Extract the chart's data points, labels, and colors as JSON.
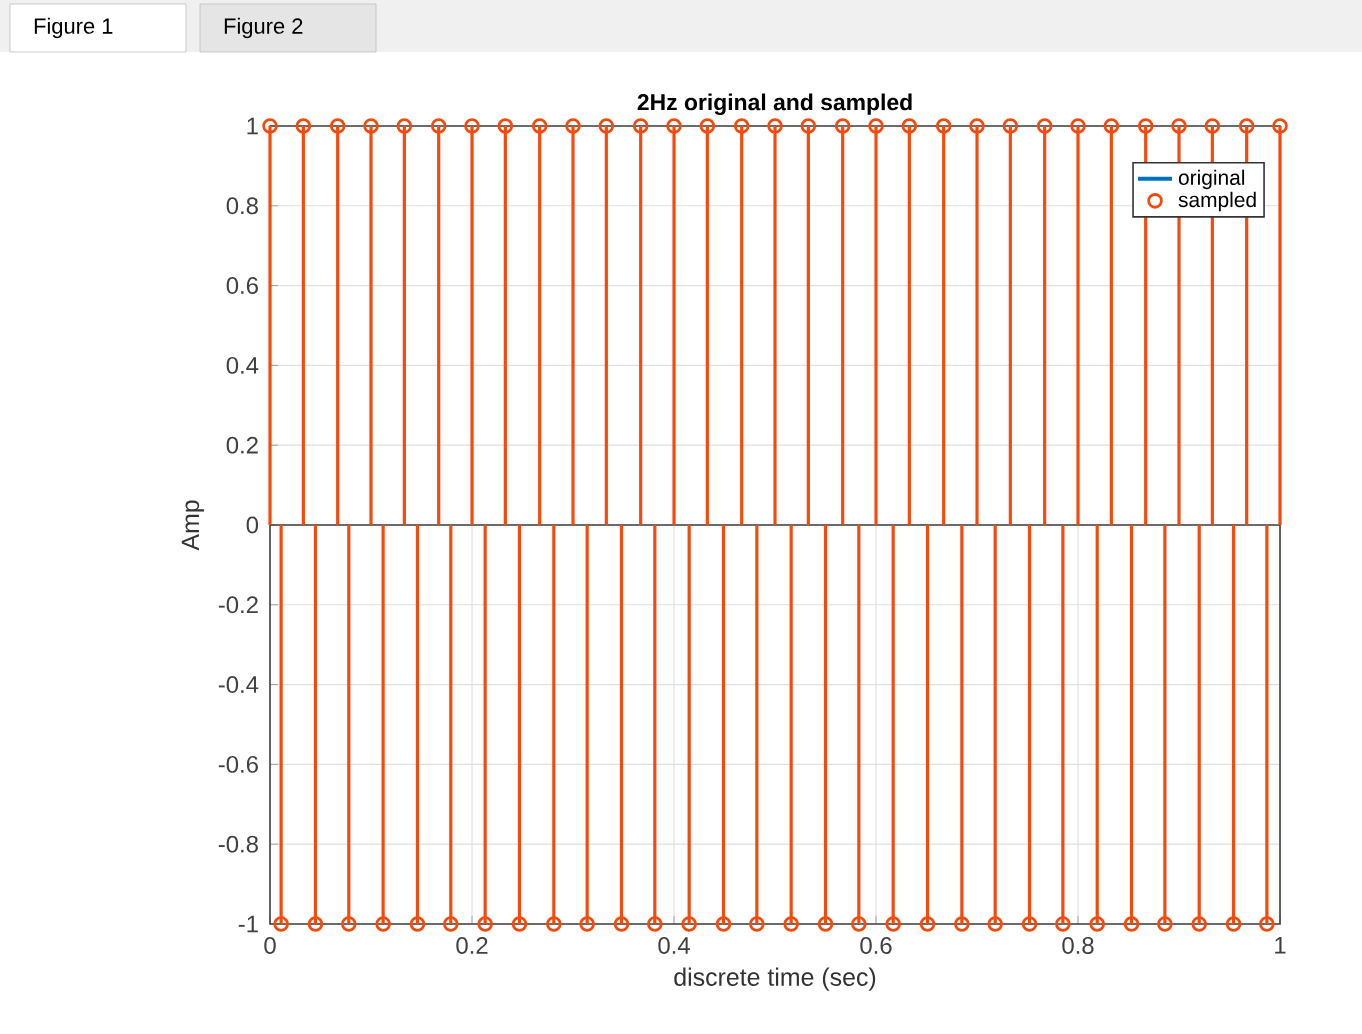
{
  "chart_data": {
    "type": "lollipop",
    "title": "2Hz original and sampled",
    "xlabel": "discrete time (sec)",
    "ylabel": "Amp",
    "annotations": [
      "Figure 1",
      "Figure 2"
    ],
    "xlim": [
      0,
      1
    ],
    "ylim": [
      -1,
      1
    ],
    "xticks": [
      0,
      0.2,
      0.4,
      0.6,
      0.8,
      1
    ],
    "yticks": [
      -1,
      -0.8,
      -0.6,
      -0.4,
      -0.2,
      0,
      0.2,
      0.4,
      0.6,
      0.8,
      1
    ],
    "grid": true,
    "legend": "top right",
    "marker": "circle",
    "series": [
      {
        "name": "original",
        "type": "line",
        "color": "#0072bd"
      },
      {
        "name": "sampled",
        "color": "#f64a0c",
        "x": [
          0,
          0.011,
          0.033,
          0.045,
          0.067,
          0.078,
          0.1,
          0.112,
          0.133,
          0.146,
          0.167,
          0.179,
          0.2,
          0.213,
          0.233,
          0.247,
          0.267,
          0.281,
          0.3,
          0.314,
          0.333,
          0.348,
          0.367,
          0.381,
          0.4,
          0.415,
          0.433,
          0.449,
          0.467,
          0.482,
          0.5,
          0.516,
          0.533,
          0.55,
          0.567,
          0.583,
          0.6,
          0.617,
          0.633,
          0.651,
          0.667,
          0.685,
          0.7,
          0.718,
          0.733,
          0.752,
          0.767,
          0.785,
          0.8,
          0.819,
          0.833,
          0.853,
          0.867,
          0.886,
          0.9,
          0.92,
          0.933,
          0.954,
          0.967,
          0.987,
          1
        ],
        "values": [
          1,
          -1,
          1,
          -1,
          1,
          -1,
          1,
          -1,
          1,
          -1,
          1,
          -1,
          1,
          -1,
          1,
          -1,
          1,
          -1,
          1,
          -1,
          1,
          -1,
          1,
          -1,
          1,
          -1,
          1,
          -1,
          1,
          -1,
          1,
          -1,
          1,
          -1,
          1,
          -1,
          1,
          -1,
          1,
          -1,
          1,
          -1,
          1,
          -1,
          1,
          -1,
          1,
          -1,
          1,
          -1,
          1,
          -1,
          1,
          -1,
          1,
          -1,
          1,
          -1,
          1,
          -1,
          1
        ]
      }
    ]
  }
}
